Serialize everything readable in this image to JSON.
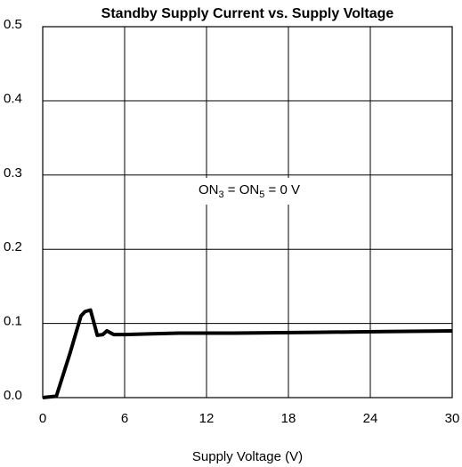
{
  "chart_data": {
    "type": "line",
    "title": "Standby Supply Current vs. Supply Voltage",
    "x_label": "Supply Voltage (V)",
    "annotation_parts": [
      "ON",
      "3",
      " = ON",
      "5",
      " = 0 V"
    ],
    "series": [
      {
        "name": "Standby Supply Current",
        "color": "#000000",
        "x": [
          0,
          1.0,
          2.0,
          2.8,
          3.1,
          3.5,
          4.0,
          4.4,
          4.7,
          5.2,
          6,
          8,
          10,
          14,
          20,
          25,
          30
        ],
        "values": [
          0,
          0.002,
          0.06,
          0.11,
          0.116,
          0.118,
          0.084,
          0.085,
          0.09,
          0.085,
          0.085,
          0.086,
          0.087,
          0.087,
          0.088,
          0.089,
          0.09
        ]
      }
    ],
    "xlim": [
      0,
      30
    ],
    "xticks": [
      0,
      6,
      12,
      18,
      24,
      30
    ],
    "ylim": [
      0,
      0.5
    ],
    "yticks": [
      {
        "value": 0,
        "label": "0.0"
      },
      0.1,
      0.2,
      0.3,
      0.4,
      0.5
    ],
    "grid": true
  }
}
